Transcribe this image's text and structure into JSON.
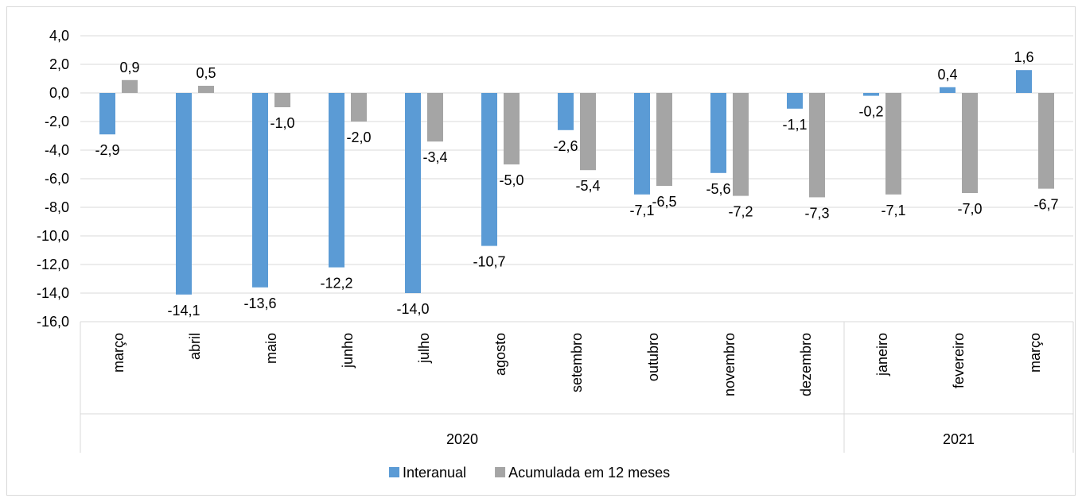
{
  "chart_data": {
    "type": "bar",
    "categories": [
      "março",
      "abril",
      "maio",
      "junho",
      "julho",
      "agosto",
      "setembro",
      "outubro",
      "novembro",
      "dezembro",
      "janeiro",
      "fevereiro",
      "março"
    ],
    "groups": [
      {
        "label": "2020",
        "count": 10
      },
      {
        "label": "2021",
        "count": 3
      }
    ],
    "series": [
      {
        "name": "Interanual",
        "color": "#5b9bd5",
        "values": [
          -2.9,
          -14.1,
          -13.6,
          -12.2,
          -14.0,
          -10.7,
          -2.6,
          -7.1,
          -5.6,
          -1.1,
          -0.2,
          0.4,
          1.6
        ],
        "labels": [
          "-2,9",
          "-14,1",
          "-13,6",
          "-12,2",
          "-14,0",
          "-10,7",
          "-2,6",
          "-7,1",
          "-5,6",
          "-1,1",
          "-0,2",
          "0,4",
          "1,6"
        ]
      },
      {
        "name": "Acumulada em 12 meses",
        "color": "#a5a5a5",
        "values": [
          0.9,
          0.5,
          -1.0,
          -2.0,
          -3.4,
          -5.0,
          -5.4,
          -6.5,
          -7.2,
          -7.3,
          -7.1,
          -7.0,
          -6.7
        ],
        "labels": [
          "0,9",
          "0,5",
          "-1,0",
          "-2,0",
          "-3,4",
          "-5,0",
          "-5,4",
          "-6,5",
          "-7,2",
          "-7,3",
          "-7,1",
          "-7,0",
          "-6,7"
        ]
      }
    ],
    "yticks": [
      4.0,
      2.0,
      0.0,
      -2.0,
      -4.0,
      -6.0,
      -8.0,
      -10.0,
      -12.0,
      -14.0,
      -16.0
    ],
    "ytick_labels": [
      "4,0",
      "2,0",
      "0,0",
      "-2,0",
      "-4,0",
      "-6,0",
      "-8,0",
      "-10,0",
      "-12,0",
      "-14,0",
      "-16,0"
    ],
    "ylim": [
      -16,
      4
    ],
    "grid": true,
    "legend_position": "bottom"
  }
}
